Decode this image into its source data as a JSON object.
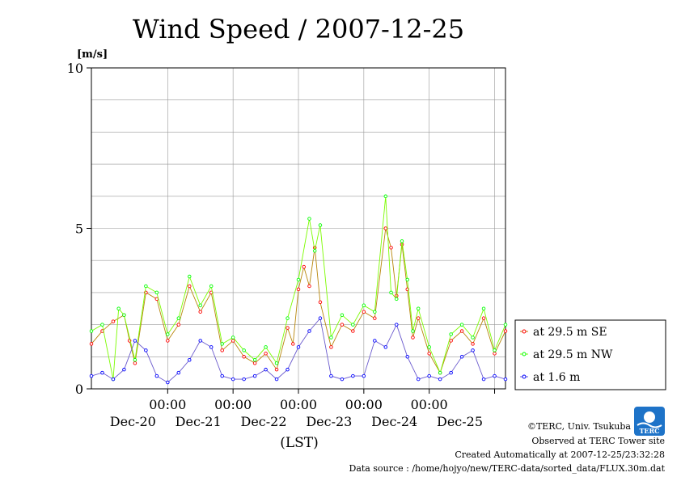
{
  "chart_data": {
    "type": "line",
    "title": "Wind Speed / 2007-12-25",
    "ylabel": "[m/s]",
    "xlabel": "(LST)",
    "ylim": [
      0,
      10
    ],
    "yticks": [
      "0",
      "5",
      "10"
    ],
    "xlim": [
      "2007-12-19T20:00",
      "2007-12-26T04:00"
    ],
    "xticks": [
      {
        "time": "2007-12-21T00:00",
        "label": "00:00",
        "day": "Dec-20"
      },
      {
        "time": "2007-12-22T00:00",
        "label": "00:00",
        "day": "Dec-21"
      },
      {
        "time": "2007-12-23T00:00",
        "label": "00:00",
        "day": "Dec-22"
      },
      {
        "time": "2007-12-24T00:00",
        "label": "00:00",
        "day": "Dec-23"
      },
      {
        "time": "2007-12-25T00:00",
        "label": "00:00",
        "day": "Dec-24"
      },
      {
        "time": "2007-12-26T00:00",
        "label": "",
        "day": "Dec-25"
      }
    ],
    "grid": true,
    "legend_position": "right",
    "series": [
      {
        "name": "at 29.5 m SE",
        "color": "#ff0000",
        "line_color": "#b8860b",
        "x": [
          "2007-12-19T20:00",
          "2007-12-20T00:00",
          "2007-12-20T04:00",
          "2007-12-20T08:00",
          "2007-12-20T10:00",
          "2007-12-20T12:00",
          "2007-12-20T16:00",
          "2007-12-20T20:00",
          "2007-12-21T00:00",
          "2007-12-21T04:00",
          "2007-12-21T08:00",
          "2007-12-21T12:00",
          "2007-12-21T16:00",
          "2007-12-21T20:00",
          "2007-12-22T00:00",
          "2007-12-22T04:00",
          "2007-12-22T08:00",
          "2007-12-22T12:00",
          "2007-12-22T16:00",
          "2007-12-22T20:00",
          "2007-12-22T22:00",
          "2007-12-23T00:00",
          "2007-12-23T02:00",
          "2007-12-23T04:00",
          "2007-12-23T06:00",
          "2007-12-23T08:00",
          "2007-12-23T12:00",
          "2007-12-23T16:00",
          "2007-12-23T20:00",
          "2007-12-24T00:00",
          "2007-12-24T04:00",
          "2007-12-24T08:00",
          "2007-12-24T10:00",
          "2007-12-24T12:00",
          "2007-12-24T14:00",
          "2007-12-24T16:00",
          "2007-12-24T18:00",
          "2007-12-24T20:00",
          "2007-12-25T00:00",
          "2007-12-25T04:00",
          "2007-12-25T08:00",
          "2007-12-25T12:00",
          "2007-12-25T16:00",
          "2007-12-25T20:00",
          "2007-12-26T00:00",
          "2007-12-26T04:00"
        ],
        "values": [
          1.4,
          1.8,
          2.1,
          2.3,
          1.5,
          0.8,
          3.0,
          2.8,
          1.5,
          2.0,
          3.2,
          2.4,
          3.0,
          1.2,
          1.5,
          1.0,
          0.8,
          1.1,
          0.6,
          1.9,
          1.4,
          3.1,
          3.8,
          3.2,
          4.4,
          2.7,
          1.3,
          2.0,
          1.8,
          2.4,
          2.2,
          5.0,
          4.4,
          2.9,
          4.5,
          3.1,
          1.6,
          2.2,
          1.1,
          0.5,
          1.5,
          1.8,
          1.4,
          2.2,
          1.1,
          1.8
        ]
      },
      {
        "name": "at 29.5 m NW",
        "color": "#00ff00",
        "line_color": "#7cfc00",
        "x": [
          "2007-12-19T20:00",
          "2007-12-20T00:00",
          "2007-12-20T04:00",
          "2007-12-20T06:00",
          "2007-12-20T08:00",
          "2007-12-20T12:00",
          "2007-12-20T16:00",
          "2007-12-20T20:00",
          "2007-12-21T00:00",
          "2007-12-21T04:00",
          "2007-12-21T08:00",
          "2007-12-21T12:00",
          "2007-12-21T16:00",
          "2007-12-21T20:00",
          "2007-12-22T00:00",
          "2007-12-22T04:00",
          "2007-12-22T08:00",
          "2007-12-22T12:00",
          "2007-12-22T16:00",
          "2007-12-22T20:00",
          "2007-12-23T00:00",
          "2007-12-23T04:00",
          "2007-12-23T06:00",
          "2007-12-23T08:00",
          "2007-12-23T12:00",
          "2007-12-23T16:00",
          "2007-12-23T20:00",
          "2007-12-24T00:00",
          "2007-12-24T04:00",
          "2007-12-24T08:00",
          "2007-12-24T10:00",
          "2007-12-24T12:00",
          "2007-12-24T14:00",
          "2007-12-24T16:00",
          "2007-12-24T18:00",
          "2007-12-24T20:00",
          "2007-12-25T00:00",
          "2007-12-25T04:00",
          "2007-12-25T08:00",
          "2007-12-25T12:00",
          "2007-12-25T16:00",
          "2007-12-25T20:00",
          "2007-12-26T00:00",
          "2007-12-26T04:00"
        ],
        "values": [
          1.8,
          2.0,
          0.3,
          2.5,
          2.3,
          0.9,
          3.2,
          3.0,
          1.7,
          2.2,
          3.5,
          2.6,
          3.2,
          1.4,
          1.6,
          1.2,
          0.9,
          1.3,
          0.8,
          2.2,
          3.4,
          5.3,
          4.3,
          5.1,
          1.6,
          2.3,
          2.0,
          2.6,
          2.4,
          6.0,
          3.0,
          2.8,
          4.6,
          3.4,
          1.8,
          2.5,
          1.3,
          0.5,
          1.7,
          2.0,
          1.6,
          2.5,
          1.2,
          2.0
        ]
      },
      {
        "name": "at 1.6 m",
        "color": "#0000ff",
        "line_color": "#6a5acd",
        "x": [
          "2007-12-19T20:00",
          "2007-12-20T00:00",
          "2007-12-20T04:00",
          "2007-12-20T08:00",
          "2007-12-20T12:00",
          "2007-12-20T16:00",
          "2007-12-20T20:00",
          "2007-12-21T00:00",
          "2007-12-21T04:00",
          "2007-12-21T08:00",
          "2007-12-21T12:00",
          "2007-12-21T16:00",
          "2007-12-21T20:00",
          "2007-12-22T00:00",
          "2007-12-22T04:00",
          "2007-12-22T08:00",
          "2007-12-22T12:00",
          "2007-12-22T16:00",
          "2007-12-22T20:00",
          "2007-12-23T00:00",
          "2007-12-23T04:00",
          "2007-12-23T08:00",
          "2007-12-23T12:00",
          "2007-12-23T16:00",
          "2007-12-23T20:00",
          "2007-12-24T00:00",
          "2007-12-24T04:00",
          "2007-12-24T08:00",
          "2007-12-24T12:00",
          "2007-12-24T16:00",
          "2007-12-24T20:00",
          "2007-12-25T00:00",
          "2007-12-25T04:00",
          "2007-12-25T08:00",
          "2007-12-25T12:00",
          "2007-12-25T16:00",
          "2007-12-25T20:00",
          "2007-12-26T00:00",
          "2007-12-26T04:00"
        ],
        "values": [
          0.4,
          0.5,
          0.3,
          0.6,
          1.5,
          1.2,
          0.4,
          0.2,
          0.5,
          0.9,
          1.5,
          1.3,
          0.4,
          0.3,
          0.3,
          0.4,
          0.6,
          0.3,
          0.6,
          1.3,
          1.8,
          2.2,
          0.4,
          0.3,
          0.4,
          0.4,
          1.5,
          1.3,
          2.0,
          1.0,
          0.3,
          0.4,
          0.3,
          0.5,
          1.0,
          1.2,
          0.3,
          0.4,
          0.3
        ]
      }
    ]
  },
  "footer": {
    "logo_text": "TERC",
    "copyright": "©TERC, Univ. Tsukuba",
    "observed": "Observed at TERC Tower site",
    "created": "Created Automatically at 2007-12-25/23:32:28",
    "source": "Data source : /home/hojyo/new/TERC-data/sorted_data/FLUX.30m.dat"
  }
}
